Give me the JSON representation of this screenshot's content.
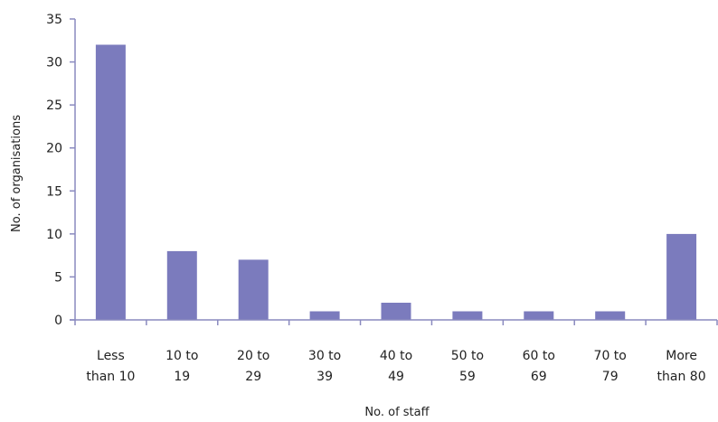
{
  "chart_data": {
    "type": "bar",
    "title": "",
    "xlabel": "No. of staff",
    "ylabel": "No. of organisations",
    "ylim": [
      0,
      35
    ],
    "yticks": [
      0,
      5,
      10,
      15,
      20,
      25,
      30,
      35
    ],
    "grid": false,
    "categories": [
      [
        "Less",
        "than 10"
      ],
      [
        "10 to",
        "19"
      ],
      [
        "20 to",
        "29"
      ],
      [
        "30 to",
        "39"
      ],
      [
        "40 to",
        "49"
      ],
      [
        "50 to",
        "59"
      ],
      [
        "60 to",
        "69"
      ],
      [
        "70 to",
        "79"
      ],
      [
        "More",
        "than 80"
      ]
    ],
    "values": [
      32,
      8,
      7,
      1,
      2,
      1,
      1,
      1,
      10
    ],
    "bar_color": "#7b7bbd",
    "axis_color": "#8a8abf"
  }
}
